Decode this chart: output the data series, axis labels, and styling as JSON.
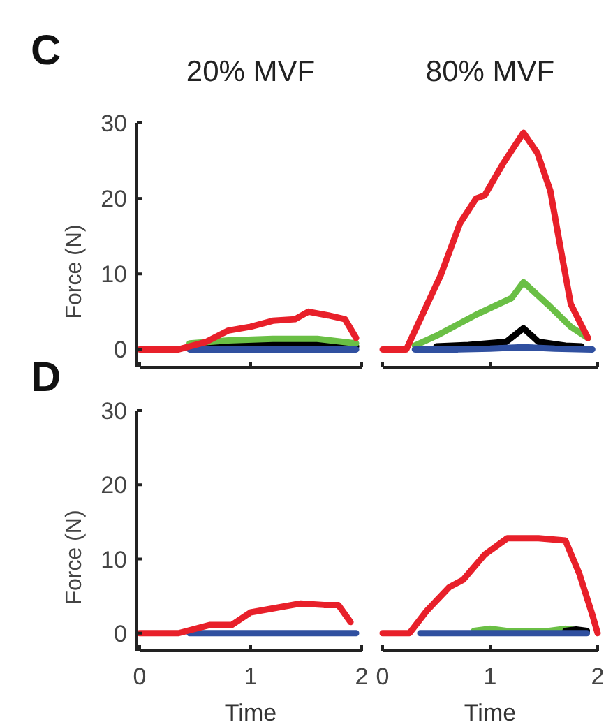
{
  "chart_data": [
    {
      "type": "line",
      "title": "20% MVF",
      "ylabel": "Force (N)",
      "annotations": [
        "C"
      ],
      "xlim": [
        0,
        2
      ],
      "xticks": [
        0,
        1,
        2
      ],
      "ylim": [
        -2,
        30
      ],
      "yticks": [
        0,
        10,
        20,
        30
      ],
      "tick_labels": "y",
      "grid": false,
      "series": [
        {
          "color": "#000000",
          "x": [
            0.45,
            0.8,
            1.2,
            1.6,
            1.95
          ],
          "values": [
            0.3,
            0.6,
            0.8,
            0.8,
            0.4
          ]
        },
        {
          "color": "#6abf45",
          "x": [
            0.45,
            0.8,
            1.2,
            1.6,
            1.95
          ],
          "values": [
            0.8,
            1.2,
            1.4,
            1.4,
            0.8
          ]
        },
        {
          "color": "#3050a0",
          "x": [
            0.45,
            1,
            1.5,
            1.95
          ],
          "values": [
            0,
            0,
            0,
            0
          ]
        },
        {
          "color": "#e8202a",
          "x": [
            0,
            0.35,
            0.6,
            0.8,
            1.0,
            1.2,
            1.4,
            1.52,
            1.7,
            1.85,
            1.95
          ],
          "values": [
            0,
            0,
            1,
            2.5,
            3,
            3.8,
            4,
            5,
            4.5,
            4,
            1.5
          ]
        }
      ]
    },
    {
      "type": "line",
      "title": "80% MVF",
      "xlim": [
        0,
        2
      ],
      "xticks": [
        0,
        1,
        2
      ],
      "ylim": [
        -2,
        30
      ],
      "yticks": [
        0,
        10,
        20,
        30
      ],
      "tick_labels": false,
      "grid": false,
      "series": [
        {
          "color": "#6abf45",
          "x": [
            0.3,
            0.5,
            0.87,
            1.2,
            1.31,
            1.54,
            1.75,
            1.91
          ],
          "values": [
            0.5,
            1.8,
            4.6,
            6.8,
            8.9,
            5.9,
            3,
            1.5
          ]
        },
        {
          "color": "#000000",
          "x": [
            0.5,
            0.8,
            1.15,
            1.31,
            1.45,
            1.7,
            1.85
          ],
          "values": [
            0.4,
            0.6,
            1,
            2.8,
            1,
            0.5,
            0.4
          ]
        },
        {
          "color": "#3050a0",
          "x": [
            0.3,
            0.7,
            1,
            1.3,
            1.6,
            1.95
          ],
          "values": [
            0,
            0,
            0.1,
            0.3,
            0.1,
            0
          ]
        },
        {
          "color": "#e8202a",
          "x": [
            0,
            0.22,
            0.54,
            0.72,
            0.87,
            0.95,
            1.12,
            1.31,
            1.44,
            1.56,
            1.66,
            1.75,
            1.91
          ],
          "values": [
            0,
            0,
            9.8,
            16.7,
            20,
            20.4,
            24.6,
            28.7,
            26,
            21,
            13,
            6,
            1.5
          ]
        }
      ]
    },
    {
      "type": "line",
      "xlabel": "Time",
      "ylabel": "Force (N)",
      "annotations": [
        "D"
      ],
      "xlim": [
        0,
        2
      ],
      "xticks": [
        0,
        1,
        2
      ],
      "ylim": [
        -2,
        30
      ],
      "yticks": [
        0,
        10,
        20,
        30
      ],
      "grid": false,
      "series": [
        {
          "color": "#3050a0",
          "x": [
            0.45,
            1,
            1.5,
            1.95
          ],
          "values": [
            0,
            0,
            0,
            0
          ]
        },
        {
          "color": "#e8202a",
          "x": [
            0,
            0.35,
            0.63,
            0.83,
            1.0,
            1.3,
            1.45,
            1.66,
            1.79,
            1.9
          ],
          "values": [
            0,
            0,
            1.1,
            1.1,
            2.8,
            3.6,
            4,
            3.8,
            3.8,
            1.5
          ]
        }
      ]
    },
    {
      "type": "line",
      "xlabel": "Time",
      "xlim": [
        0,
        2
      ],
      "xticks": [
        0,
        1,
        2
      ],
      "ylim": [
        -2,
        30
      ],
      "yticks": [
        0,
        10,
        20,
        30
      ],
      "tick_labels": "x",
      "grid": false,
      "series": [
        {
          "color": "#6abf45",
          "x": [
            0.85,
            1.0,
            1.15,
            1.55,
            1.7,
            1.85
          ],
          "values": [
            0.3,
            0.6,
            0.3,
            0.3,
            0.6,
            0.3
          ]
        },
        {
          "color": "#000000",
          "x": [
            1.7,
            1.8,
            1.9
          ],
          "values": [
            0.3,
            0.5,
            0.3
          ]
        },
        {
          "color": "#3050a0",
          "x": [
            0.35,
            0.8,
            1.3,
            1.9
          ],
          "values": [
            0,
            0,
            0,
            0
          ]
        },
        {
          "color": "#e8202a",
          "x": [
            0,
            0.25,
            0.41,
            0.62,
            0.75,
            0.95,
            1.16,
            1.45,
            1.7,
            1.83,
            1.95,
            2.0
          ],
          "values": [
            0,
            0,
            3,
            6.2,
            7.2,
            10.6,
            12.8,
            12.8,
            12.5,
            8,
            2.5,
            0
          ]
        }
      ]
    }
  ]
}
